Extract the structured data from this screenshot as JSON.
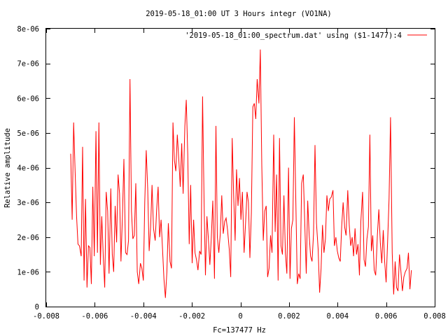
{
  "chart_data": {
    "type": "line",
    "title": "2019-05-18_01:00 UT 3 Hours integr (VO1NA)",
    "xlabel": "Fc=137477 Hz",
    "ylabel": "Relative amplitude",
    "xlim": [
      -0.008,
      0.008
    ],
    "ylim": [
      0,
      8e-06
    ],
    "xticks": [
      -0.008,
      -0.006,
      -0.004,
      -0.002,
      0,
      0.002,
      0.004,
      0.006,
      0.008
    ],
    "xtick_labels": [
      "-0.008",
      "-0.006",
      "-0.004",
      "-0.002",
      "0",
      "0.002",
      "0.004",
      "0.006",
      "0.008"
    ],
    "yticks": [
      0,
      1e-06,
      2e-06,
      3e-06,
      4e-06,
      5e-06,
      6e-06,
      7e-06,
      8e-06
    ],
    "ytick_labels": [
      "0",
      "1e-06",
      "2e-06",
      "3e-06",
      "4e-06",
      "5e-06",
      "6e-06",
      "7e-06",
      "8e-06"
    ],
    "grid": false,
    "legend_position": "top-right",
    "series": [
      {
        "name": "'2019-05-18_01:00_spectrum.dat' using ($1-1477):4",
        "color": "#ff0000",
        "x": [
          -0.00699,
          -0.00693,
          -0.00687,
          -0.00681,
          -0.00675,
          -0.00669,
          -0.00663,
          -0.00656,
          -0.0065,
          -0.00644,
          -0.00638,
          -0.00632,
          -0.00626,
          -0.0062,
          -0.00614,
          -0.00608,
          -0.00602,
          -0.00595,
          -0.00589,
          -0.00583,
          -0.00577,
          -0.00571,
          -0.00565,
          -0.00559,
          -0.00553,
          -0.00547,
          -0.00541,
          -0.00534,
          -0.00528,
          -0.00522,
          -0.00516,
          -0.0051,
          -0.00504,
          -0.00498,
          -0.00492,
          -0.00486,
          -0.0048,
          -0.00473,
          -0.00467,
          -0.00461,
          -0.00455,
          -0.00449,
          -0.00443,
          -0.00437,
          -0.00431,
          -0.00425,
          -0.00419,
          -0.00412,
          -0.00406,
          -0.004,
          -0.00394,
          -0.00388,
          -0.00382,
          -0.00376,
          -0.0037,
          -0.00364,
          -0.00358,
          -0.00351,
          -0.00345,
          -0.00339,
          -0.00333,
          -0.00327,
          -0.00321,
          -0.00315,
          -0.00309,
          -0.00303,
          -0.00297,
          -0.0029,
          -0.00284,
          -0.00278,
          -0.00272,
          -0.00266,
          -0.0026,
          -0.00254,
          -0.00248,
          -0.00242,
          -0.00236,
          -0.00229,
          -0.00223,
          -0.00217,
          -0.00211,
          -0.00205,
          -0.00199,
          -0.00193,
          -0.00187,
          -0.00181,
          -0.00175,
          -0.00168,
          -0.00162,
          -0.00156,
          -0.0015,
          -0.00144,
          -0.00138,
          -0.00132,
          -0.00126,
          -0.0012,
          -0.00114,
          -0.00107,
          -0.00101,
          -0.00095,
          -0.00089,
          -0.00083,
          -0.00077,
          -0.00071,
          -0.00065,
          -0.00059,
          -0.00053,
          -0.00046,
          -0.0004,
          -0.00034,
          -0.00028,
          -0.00022,
          -0.00016,
          -0.0001,
          -4e-05,
          2e-05,
          8e-05,
          0.00015,
          0.00021,
          0.00027,
          0.00033,
          0.00039,
          0.00045,
          0.00051,
          0.00057,
          0.00063,
          0.00069,
          0.00076,
          0.00082,
          0.00088,
          0.00094,
          0.001,
          0.00106,
          0.00112,
          0.00118,
          0.00124,
          0.0013,
          0.00137,
          0.00143,
          0.00149,
          0.00155,
          0.00161,
          0.00167,
          0.00173,
          0.00179,
          0.00185,
          0.00191,
          0.00198,
          0.00204,
          0.0021,
          0.00216,
          0.00222,
          0.00228,
          0.00234,
          0.0024,
          0.00246,
          0.00252,
          0.00259,
          0.00265,
          0.00271,
          0.00277,
          0.00283,
          0.00289,
          0.00295,
          0.00301,
          0.00307,
          0.00313,
          0.0032,
          0.00326,
          0.00332,
          0.00338,
          0.00344,
          0.0035,
          0.00356,
          0.00362,
          0.00368,
          0.00374,
          0.00381,
          0.00387,
          0.00393,
          0.00399,
          0.00405,
          0.00411,
          0.00417,
          0.00423,
          0.00429,
          0.00435,
          0.00442,
          0.00448,
          0.00454,
          0.0046,
          0.00466,
          0.00472,
          0.00478,
          0.00484,
          0.0049,
          0.00496,
          0.00503,
          0.00509,
          0.00515,
          0.00521,
          0.00527,
          0.00533,
          0.00539,
          0.00545,
          0.00551,
          0.00557,
          0.00564,
          0.0057,
          0.00576,
          0.00582,
          0.00588,
          0.00594,
          0.006,
          0.00606,
          0.00612,
          0.00618,
          0.00625,
          0.00631,
          0.00637,
          0.00643,
          0.00649,
          0.00655,
          0.00661,
          0.00667,
          0.00673,
          0.00679,
          0.00686,
          0.00692,
          0.00698,
          0.00704
        ],
        "y": [
          4.4e-06,
          2.5e-06,
          5.3e-06,
          3.9e-06,
          2.6e-06,
          1.8e-06,
          1.75e-06,
          1.45e-06,
          4.6e-06,
          7.5e-07,
          3.1e-06,
          5.5e-07,
          1.75e-06,
          1.7e-06,
          6.5e-07,
          3.45e-06,
          1.45e-06,
          5.05e-06,
          1.55e-06,
          5.3e-06,
          1.2e-06,
          2.6e-06,
          1.45e-06,
          5.5e-07,
          3.3e-06,
          2.75e-06,
          9.5e-07,
          3.4e-06,
          1.5e-06,
          1e-06,
          2.9e-06,
          1.85e-06,
          3.8e-06,
          3.25e-06,
          1.3e-06,
          2.6e-06,
          4.25e-06,
          1.55e-06,
          1.5e-06,
          1.9e-06,
          6.55e-06,
          2.75e-06,
          1.95e-06,
          2.05e-06,
          3.55e-06,
          1e-06,
          6.5e-07,
          1.25e-06,
          1.1e-06,
          7.5e-07,
          3e-06,
          4.5e-06,
          3.4e-06,
          1.6e-06,
          2.3e-06,
          3.5e-06,
          2.25e-06,
          1.9e-06,
          2.8e-06,
          3.45e-06,
          2e-06,
          2.5e-06,
          1.65e-06,
          8e-07,
          2.5e-07,
          1e-06,
          2.4e-06,
          1.3e-06,
          1.1e-06,
          5.3e-06,
          4.2e-06,
          3.9e-06,
          4.95e-06,
          4.25e-06,
          3.45e-06,
          4.7e-06,
          3.25e-06,
          5.2e-06,
          5.95e-06,
          4.4e-06,
          1.8e-06,
          3.5e-06,
          1.25e-06,
          2.5e-06,
          1.55e-06,
          1.35e-06,
          1.05e-06,
          1.6e-06,
          1.5e-06,
          6.05e-06,
          3.05e-06,
          9e-07,
          2.6e-06,
          1.95e-06,
          1.2e-06,
          2e-06,
          3.05e-06,
          8e-07,
          5.2e-06,
          2e-06,
          1.55e-06,
          2.1e-06,
          3.2e-06,
          2.1e-06,
          2.45e-06,
          2.55e-06,
          2.2e-06,
          1.65e-06,
          8.5e-07,
          4.85e-06,
          3.2e-06,
          1.9e-06,
          3.95e-06,
          2.9e-06,
          3.7e-06,
          2.5e-06,
          3.3e-06,
          1.55e-06,
          2.4e-06,
          3.3e-06,
          3e-06,
          1.4e-06,
          2.7e-06,
          5.75e-06,
          5.85e-06,
          5.4e-06,
          6.55e-06,
          5.85e-06,
          7.4e-06,
          4.05e-06,
          1.9e-06,
          2.75e-06,
          2.9e-06,
          8.5e-07,
          1.1e-06,
          2.05e-06,
          1.55e-06,
          4.95e-06,
          2.15e-06,
          3.8e-06,
          7.5e-07,
          4.85e-06,
          1.75e-06,
          1.5e-06,
          3.2e-06,
          1.55e-06,
          9.5e-07,
          4e-06,
          8e-07,
          2.25e-06,
          2.5e-06,
          5.45e-06,
          3.05e-06,
          6.5e-07,
          9.5e-07,
          8e-07,
          3.55e-06,
          3.8e-06,
          2.4e-06,
          9.5e-07,
          3.05e-06,
          2.05e-06,
          1.45e-06,
          1.3e-06,
          2.1e-06,
          4.65e-06,
          2.4e-06,
          1.65e-06,
          4e-07,
          1.1e-06,
          2.35e-06,
          1.55e-06,
          1.95e-06,
          3.2e-06,
          2.75e-06,
          3.1e-06,
          3.15e-06,
          3.35e-06,
          1.75e-06,
          2e-06,
          1.6e-06,
          1.4e-06,
          1.3e-06,
          2.3e-06,
          3e-06,
          2.3e-06,
          2.05e-06,
          3.35e-06,
          2.35e-06,
          1.75e-06,
          2e-06,
          1.45e-06,
          2.25e-06,
          1.5e-06,
          1.8e-06,
          9e-07,
          2.45e-06,
          3.3e-06,
          1.35e-06,
          1.15e-06,
          1.95e-06,
          2.3e-06,
          4.95e-06,
          1.6e-06,
          2.05e-06,
          1.05e-06,
          9e-07,
          2.05e-06,
          2.8e-06,
          1.85e-06,
          1.25e-06,
          2.2e-06,
          1.3e-06,
          7e-07,
          1.85e-06,
          3.1e-06,
          5.45e-06,
          1.55e-06,
          3.5e-07,
          1.3e-06,
          5.5e-07,
          4.5e-07,
          1.5e-06,
          1e-06,
          4.5e-07,
          8.5e-07,
          1e-06,
          1.1e-06,
          1.55e-06,
          5e-07,
          1.05e-06
        ]
      }
    ]
  }
}
